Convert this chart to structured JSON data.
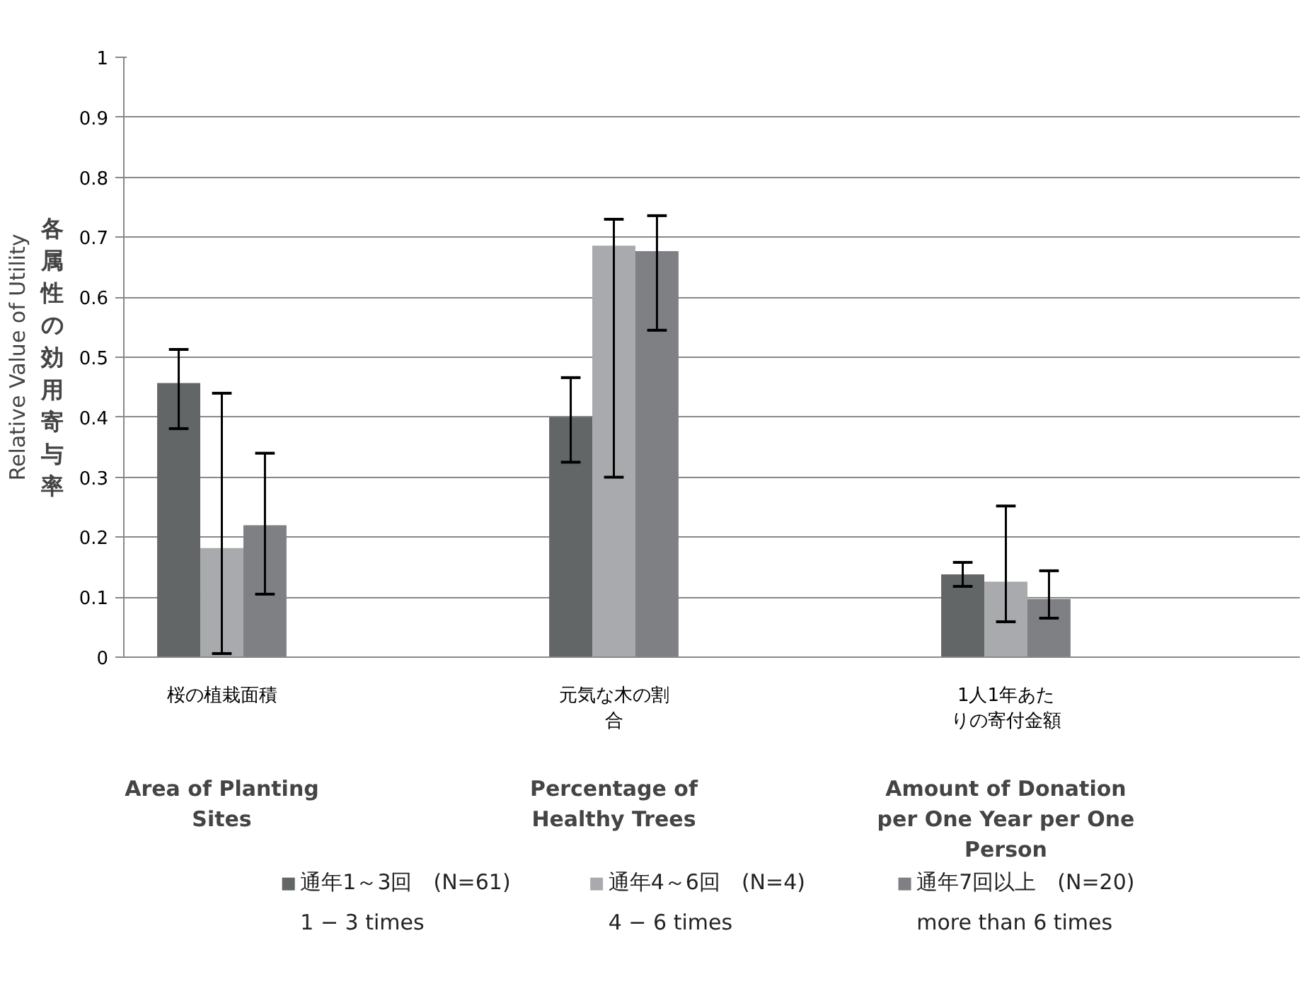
{
  "chart_data": {
    "type": "bar",
    "ylabel": "Relative Value of Utility",
    "categories": [
      "桜の植栽面積",
      null,
      "元気な木の割合",
      null,
      "1人1年あたりの寄付金額",
      null
    ],
    "series": [
      {
        "name": "通年1～3回　(N=61)\n1 − 3 times",
        "color": "#626666",
        "values": [
          0.457,
          null,
          0.4,
          null,
          0.138,
          null
        ],
        "errors": [
          [
            0.381,
            0.513
          ],
          null,
          [
            0.325,
            0.466
          ],
          null,
          [
            0.118,
            0.158
          ],
          null
        ]
      },
      {
        "name": "通年4～6回　(N=4)\n4 − 6 times",
        "color": "#a9aaad",
        "values": [
          0.182,
          null,
          0.686,
          null,
          0.126,
          null
        ],
        "errors": [
          [
            0.006,
            0.44
          ],
          null,
          [
            0.3,
            0.73
          ],
          null,
          [
            0.059,
            0.252
          ],
          null
        ]
      },
      {
        "name": "通年7回以上　(N=20)\nmore than 6 times",
        "color": "#7f8084",
        "values": [
          0.22,
          null,
          0.677,
          null,
          0.097,
          null
        ],
        "errors": [
          [
            0.105,
            0.34
          ],
          null,
          [
            0.545,
            0.736
          ],
          null,
          [
            0.065,
            0.144
          ],
          null
        ]
      }
    ],
    "ylim": [
      0,
      1
    ],
    "yticks": [
      0,
      0.1,
      0.2,
      0.3,
      0.4,
      0.5,
      0.6,
      0.7,
      0.8,
      0.9,
      1
    ],
    "grid": "y",
    "legend": "bottom",
    "annotations": [
      "各属性の効用寄与率",
      "Area of Planting\nSites",
      "Percentage of\nHealthy Trees",
      "Amount of Donation\nper One Year per One\nPerson"
    ]
  }
}
